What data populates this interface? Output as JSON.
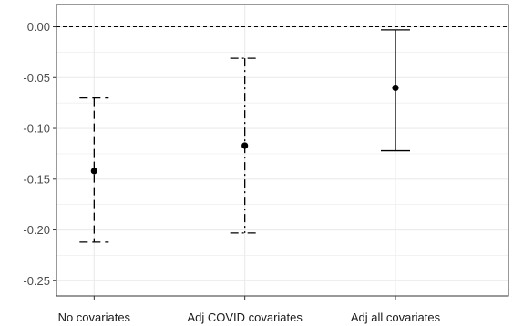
{
  "chart_data": {
    "type": "errorbar",
    "categories": [
      "No covariates",
      "Adj COVID covariates",
      "Adj all covariates"
    ],
    "series": [
      {
        "estimate": [
          -0.142,
          -0.117,
          -0.06
        ],
        "lower": [
          -0.212,
          -0.203,
          -0.122
        ],
        "upper": [
          -0.07,
          -0.031,
          -0.003
        ],
        "linestyles": [
          "dashed",
          "dashdot",
          "solid"
        ]
      }
    ],
    "ylim": [
      -0.265,
      0.022
    ],
    "yticks": [
      0.0,
      -0.05,
      -0.1,
      -0.15,
      -0.2,
      -0.25
    ],
    "ytick_labels": [
      "0.00",
      "-0.05",
      "-0.10",
      "-0.15",
      "-0.20",
      "-0.25"
    ],
    "reference_line": {
      "y": 0.0,
      "style": "dashed"
    },
    "grid": true,
    "title": "",
    "xlabel": "",
    "ylabel": "",
    "colors": {
      "point": "#000000",
      "errorbar": "#000000",
      "gridline": "#ebebeb",
      "axis_frame": "#333333"
    }
  }
}
